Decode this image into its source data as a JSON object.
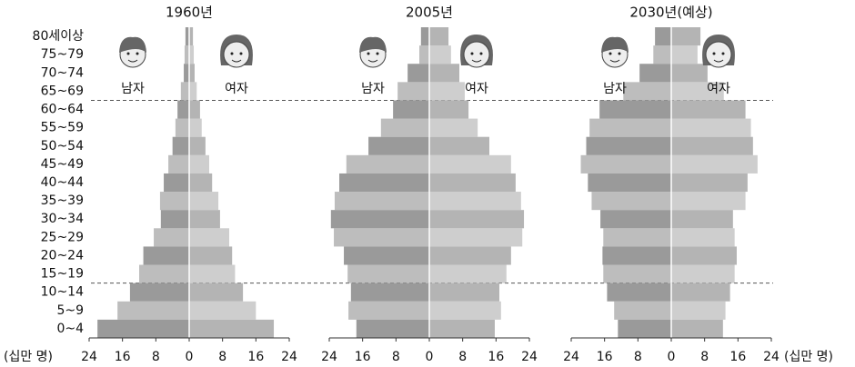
{
  "chart_data": {
    "type": "pyramid",
    "unit_label": "(십만 명)",
    "categories": [
      "0~4",
      "5~9",
      "10~14",
      "15~19",
      "20~24",
      "25~29",
      "30~34",
      "35~39",
      "40~44",
      "45~49",
      "50~54",
      "55~59",
      "60~64",
      "65~69",
      "70~74",
      "75~79",
      "80세이상"
    ],
    "xlim": [
      -24,
      24
    ],
    "xticks": [
      {
        "value": -24,
        "label": "24"
      },
      {
        "value": -16,
        "label": "16"
      },
      {
        "value": -8,
        "label": "8"
      },
      0,
      8,
      16,
      24
    ],
    "panels": [
      {
        "title": "1960년",
        "series": [
          {
            "name": "남자",
            "color": "#9a9a9a",
            "values": [
              22,
              17.2,
              14.2,
              12,
              11,
              8.5,
              6.8,
              7,
              6.1,
              5,
              4,
              3.3,
              2.8,
              2,
              1.3,
              1.1,
              0.9
            ]
          },
          {
            "name": "여자",
            "color": "#b4b4b4",
            "values": [
              20.3,
              16,
              12.9,
              11,
              10.3,
              9.6,
              7.4,
              7,
              5.5,
              4.8,
              3.9,
              3,
              2.6,
              1.8,
              1.3,
              1.1,
              0.9
            ]
          }
        ]
      },
      {
        "title": "2005년",
        "series": [
          {
            "name": "남자",
            "color": "#9a9a9a",
            "values": [
              17.5,
              19.4,
              18.8,
              19.6,
              20.5,
              22.9,
              23.6,
              22.7,
              21.6,
              19.9,
              14.6,
              11.6,
              8.7,
              7.6,
              5.2,
              2.4,
              2
            ]
          },
          {
            "name": "여자",
            "color": "#b4b4b4",
            "values": [
              15.7,
              17.2,
              16.8,
              18.5,
              19.6,
              22.3,
              22.7,
              22,
              20.7,
              19.6,
              14.4,
              11.6,
              9.4,
              8.5,
              7.2,
              5.2,
              4.6
            ]
          }
        ]
      },
      {
        "title": "2030년(예상)",
        "series": [
          {
            "name": "남자",
            "color": "#9a9a9a",
            "values": [
              12.8,
              13.7,
              15.4,
              16.3,
              16.5,
              16.3,
              17,
              19.1,
              20,
              21.7,
              20.4,
              19.6,
              17.2,
              11.5,
              7.6,
              4.3,
              3.9
            ]
          },
          {
            "name": "여자",
            "color": "#b4b4b4",
            "values": [
              12.4,
              13,
              14.1,
              15.2,
              15.7,
              15.2,
              14.8,
              17.8,
              18.3,
              20.7,
              19.6,
              19.1,
              17.8,
              12.6,
              8.7,
              6.3,
              7
            ]
          }
        ]
      }
    ]
  }
}
